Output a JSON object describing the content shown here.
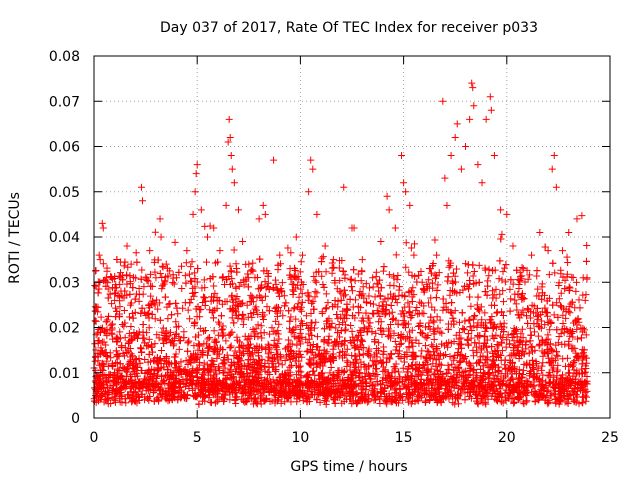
{
  "chart_data": {
    "type": "scatter",
    "title": "Day 037 of 2017, Rate Of TEC Index for receiver p033",
    "xlabel": "GPS time / hours",
    "ylabel": "ROTI / TECUs",
    "xlim": [
      0,
      25
    ],
    "ylim": [
      0,
      0.08
    ],
    "xticks": [
      0,
      5,
      10,
      15,
      20,
      25
    ],
    "yticks": [
      0,
      0.01,
      0.02,
      0.03,
      0.04,
      0.05,
      0.06,
      0.07,
      0.08
    ],
    "xtick_labels": [
      "0",
      "5",
      "10",
      "15",
      "20",
      "25"
    ],
    "ytick_labels": [
      "0",
      "0.01",
      "0.02",
      "0.03",
      "0.04",
      "0.05",
      "0.06",
      "0.07",
      "0.08"
    ],
    "grid": true,
    "marker": "+",
    "color": "#ff0000",
    "x_range_of_data": [
      0,
      23.9
    ],
    "series": [
      {
        "points": [
          [
            0.1,
            0.029
          ],
          [
            0.25,
            0.036
          ],
          [
            0.4,
            0.043
          ],
          [
            0.45,
            0.042
          ],
          [
            0.3,
            0.035
          ],
          [
            0.6,
            0.031
          ],
          [
            1.0,
            0.026
          ],
          [
            1.3,
            0.031
          ],
          [
            1.6,
            0.038
          ],
          [
            1.8,
            0.034
          ],
          [
            2.3,
            0.051
          ],
          [
            2.35,
            0.048
          ],
          [
            2.7,
            0.037
          ],
          [
            3.0,
            0.031
          ],
          [
            3.2,
            0.044
          ],
          [
            3.25,
            0.04
          ],
          [
            3.5,
            0.034
          ],
          [
            4.0,
            0.031
          ],
          [
            4.5,
            0.037
          ],
          [
            4.8,
            0.045
          ],
          [
            4.9,
            0.05
          ],
          [
            4.95,
            0.054
          ],
          [
            5.0,
            0.056
          ],
          [
            5.2,
            0.046
          ],
          [
            5.5,
            0.04
          ],
          [
            5.8,
            0.042
          ],
          [
            6.1,
            0.037
          ],
          [
            6.4,
            0.047
          ],
          [
            6.5,
            0.061
          ],
          [
            6.55,
            0.066
          ],
          [
            6.6,
            0.062
          ],
          [
            6.65,
            0.058
          ],
          [
            6.7,
            0.055
          ],
          [
            6.8,
            0.052
          ],
          [
            7.0,
            0.046
          ],
          [
            7.2,
            0.039
          ],
          [
            7.5,
            0.034
          ],
          [
            7.8,
            0.031
          ],
          [
            8.2,
            0.047
          ],
          [
            8.3,
            0.045
          ],
          [
            8.7,
            0.057
          ],
          [
            9.0,
            0.036
          ],
          [
            9.5,
            0.033
          ],
          [
            9.8,
            0.04
          ],
          [
            10.1,
            0.036
          ],
          [
            10.4,
            0.05
          ],
          [
            10.5,
            0.057
          ],
          [
            10.6,
            0.055
          ],
          [
            10.8,
            0.045
          ],
          [
            11.2,
            0.038
          ],
          [
            11.6,
            0.035
          ],
          [
            12.1,
            0.051
          ],
          [
            12.5,
            0.042
          ],
          [
            13.0,
            0.035
          ],
          [
            13.5,
            0.031
          ],
          [
            13.9,
            0.039
          ],
          [
            14.2,
            0.049
          ],
          [
            14.3,
            0.046
          ],
          [
            14.6,
            0.042
          ],
          [
            14.9,
            0.058
          ],
          [
            15.0,
            0.052
          ],
          [
            15.1,
            0.05
          ],
          [
            15.3,
            0.047
          ],
          [
            15.5,
            0.036
          ],
          [
            15.9,
            0.03
          ],
          [
            16.3,
            0.033
          ],
          [
            16.6,
            0.036
          ],
          [
            16.9,
            0.07
          ],
          [
            17.0,
            0.053
          ],
          [
            17.1,
            0.047
          ],
          [
            17.3,
            0.058
          ],
          [
            17.5,
            0.062
          ],
          [
            17.6,
            0.065
          ],
          [
            17.8,
            0.055
          ],
          [
            18.0,
            0.06
          ],
          [
            18.2,
            0.066
          ],
          [
            18.3,
            0.074
          ],
          [
            18.35,
            0.073
          ],
          [
            18.4,
            0.069
          ],
          [
            18.6,
            0.056
          ],
          [
            18.8,
            0.052
          ],
          [
            19.0,
            0.066
          ],
          [
            19.2,
            0.071
          ],
          [
            19.25,
            0.068
          ],
          [
            19.4,
            0.058
          ],
          [
            19.7,
            0.046
          ],
          [
            20.0,
            0.045
          ],
          [
            20.3,
            0.038
          ],
          [
            20.8,
            0.033
          ],
          [
            21.2,
            0.036
          ],
          [
            21.6,
            0.041
          ],
          [
            22.0,
            0.037
          ],
          [
            22.2,
            0.055
          ],
          [
            22.3,
            0.058
          ],
          [
            22.4,
            0.051
          ],
          [
            22.7,
            0.037
          ],
          [
            23.0,
            0.041
          ],
          [
            23.4,
            0.044
          ],
          [
            23.7,
            0.031
          ],
          [
            23.8,
            0.026
          ],
          [
            12.6,
            0.042
          ],
          [
            8.0,
            0.044
          ]
        ]
      }
    ]
  }
}
